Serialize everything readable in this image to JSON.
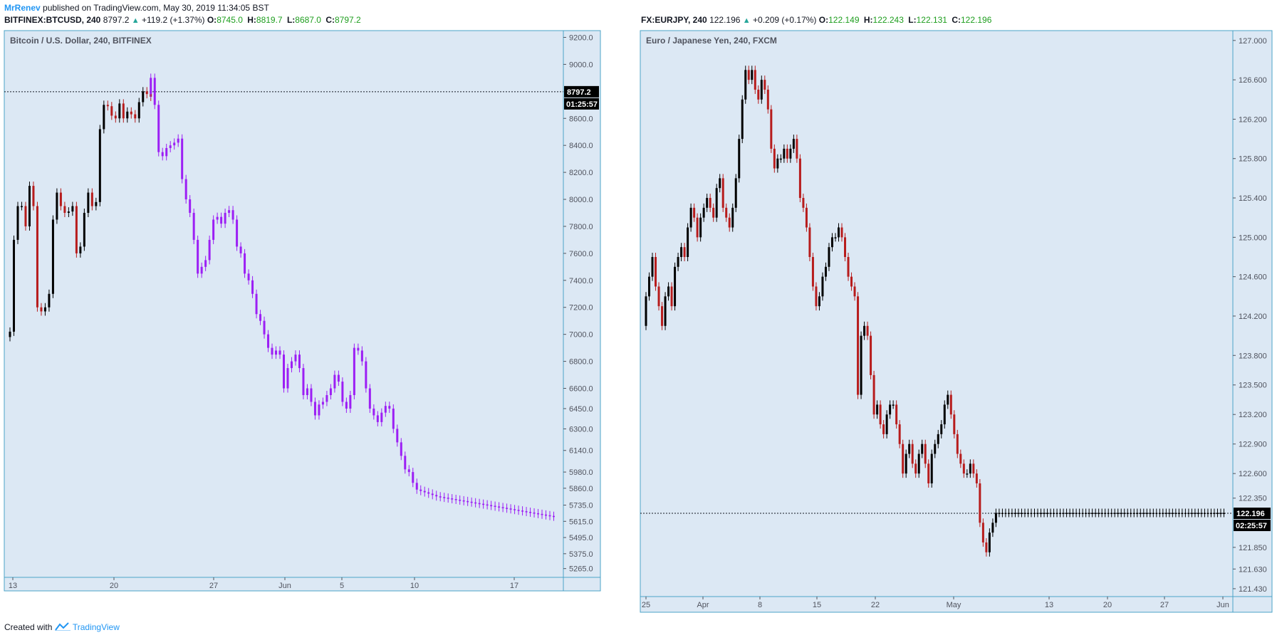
{
  "header": {
    "user": "MrRenev",
    "published": " published on TradingView.com, May 30, 2019 11:34:05 BST"
  },
  "left_symbol": {
    "ticker": "BITFINEX:BTCUSD, 240",
    "last": "8797.2",
    "change": "+119.2 (+1.37%)",
    "o_label": "O:",
    "o": "8745.0",
    "h_label": "H:",
    "h": "8819.7",
    "l_label": "L:",
    "l": "8687.0",
    "c_label": "C:",
    "c": "8797.2"
  },
  "right_symbol": {
    "ticker": "FX:EURJPY, 240",
    "last": "122.196",
    "change": "+0.209 (+0.17%)",
    "o_label": "O:",
    "o": "122.149",
    "h_label": "H:",
    "h": "122.243",
    "l_label": "L:",
    "l": "122.131",
    "c_label": "C:",
    "c": "122.196"
  },
  "footer": {
    "created": "Created with",
    "brand": "TradingView"
  },
  "colors": {
    "bg": "#dce8f4",
    "border": "#4ba3c7",
    "up": "#000000",
    "down": "#b71c1c",
    "projection": "#9c1ff4"
  },
  "chart_data": [
    {
      "type": "line",
      "title": "Bitcoin / U.S. Dollar, 240, BITFINEX",
      "y_ticks": [
        9200,
        9000,
        8600,
        8400,
        8200,
        8000,
        7800,
        7600,
        7400,
        7200,
        7000,
        6800,
        6600,
        6450,
        6300,
        6140,
        5980,
        5860,
        5735,
        5615,
        5495,
        5375,
        5265
      ],
      "x_ticks": [
        "13",
        "20",
        "27",
        "Jun",
        "5",
        "10",
        "17"
      ],
      "last_price": "8797.2",
      "countdown": "01:25:57",
      "ylim": [
        5200,
        9250
      ],
      "series": [
        {
          "name": "",
          "x": [
            0,
            3,
            6,
            9,
            12,
            15,
            18,
            21,
            24,
            27,
            30,
            33,
            36,
            39,
            42,
            45,
            48,
            51,
            54,
            57,
            60,
            63,
            66,
            69,
            72,
            75,
            78,
            81,
            84,
            87,
            90,
            93,
            96,
            99,
            102,
            105,
            108,
            111
          ],
          "values": [
            6980,
            7020,
            7700,
            7950,
            7950,
            7800,
            8100,
            7950,
            7200,
            7170,
            7200,
            7300,
            7850,
            8050,
            7950,
            7900,
            7910,
            7950,
            7600,
            7650,
            7900,
            8050,
            7950,
            7980,
            8520,
            8700,
            8690,
            8620,
            8600,
            8710,
            8600,
            8650,
            8630,
            8600,
            8720,
            8800,
            8780,
            8760
          ]
        },
        {
          "name": "",
          "x": [
            108,
            111,
            114,
            117,
            120,
            123,
            126,
            129,
            132,
            135,
            138,
            141,
            144,
            147,
            150,
            153,
            156,
            159,
            162,
            165,
            168,
            171,
            174,
            177,
            180,
            183,
            186,
            189,
            192,
            195,
            198,
            201,
            204,
            207,
            210,
            213,
            216,
            219,
            222,
            225,
            228,
            231,
            234,
            237,
            240,
            243,
            246,
            249,
            252,
            255,
            258,
            261,
            264,
            267,
            270,
            273,
            276,
            279,
            282,
            285,
            288,
            291,
            294,
            297,
            300,
            303,
            306,
            309,
            312,
            315,
            318,
            321,
            324,
            327,
            330,
            333,
            336,
            339,
            342,
            345,
            348,
            351,
            354,
            357,
            360,
            363,
            366,
            369,
            372,
            375,
            378,
            381,
            384,
            387,
            390,
            393,
            396,
            399,
            402,
            405,
            408,
            411,
            414,
            417,
            420
          ],
          "values": [
            8780,
            8900,
            8700,
            8350,
            8320,
            8380,
            8400,
            8420,
            8450,
            8150,
            8000,
            7900,
            7700,
            7450,
            7500,
            7550,
            7700,
            7850,
            7870,
            7820,
            7900,
            7920,
            7850,
            7650,
            7600,
            7450,
            7400,
            7300,
            7150,
            7100,
            7000,
            6900,
            6850,
            6880,
            6850,
            6600,
            6750,
            6800,
            6850,
            6750,
            6550,
            6600,
            6500,
            6400,
            6480,
            6500,
            6550,
            6600,
            6700,
            6650,
            6500,
            6450,
            6550,
            6900,
            6880,
            6800,
            6600,
            6450,
            6400,
            6350,
            6420,
            6470,
            6450,
            6300,
            6200,
            6100,
            6000,
            5980,
            5900,
            5850,
            5840,
            5830,
            5820,
            5810,
            5800,
            5795,
            5790,
            5785,
            5780,
            5775,
            5770,
            5765,
            5760,
            5755,
            5750,
            5745,
            5740,
            5735,
            5730,
            5725,
            5720,
            5715,
            5710,
            5705,
            5700,
            5695,
            5690,
            5685,
            5680,
            5675,
            5670,
            5665,
            5660,
            5655,
            5650
          ]
        }
      ]
    },
    {
      "type": "line",
      "title": "Euro / Japanese Yen, 240, FXCM",
      "y_ticks": [
        127.0,
        126.6,
        126.2,
        125.8,
        125.4,
        125.0,
        124.6,
        124.2,
        123.8,
        123.5,
        123.2,
        122.9,
        122.6,
        122.35,
        121.85,
        121.63,
        121.43
      ],
      "y_tick_labels": [
        "127.000",
        "126.600",
        "126.200",
        "125.800",
        "125.400",
        "125.000",
        "124.600",
        "124.200",
        "123.800",
        "123.500",
        "123.200",
        "122.900",
        "122.600",
        "122.350",
        "121.850",
        "121.630",
        "121.430"
      ],
      "x_ticks": [
        "25",
        "Apr",
        "8",
        "15",
        "22",
        "May",
        "13",
        "20",
        "27",
        "Jun"
      ],
      "last_price": "122.196",
      "countdown": "02:25:57",
      "ylim": [
        121.35,
        127.1
      ],
      "series": [
        {
          "name": "",
          "x": [
            0,
            3,
            6,
            9,
            12,
            15,
            18,
            21,
            24,
            27,
            30,
            33,
            36,
            39,
            42,
            45,
            48,
            51,
            54,
            57,
            60,
            63,
            66,
            69,
            72,
            75,
            78,
            81,
            84,
            87,
            90,
            93,
            96,
            99,
            102,
            105,
            108,
            111,
            114,
            117,
            120,
            123,
            126,
            129,
            132,
            135,
            138,
            141,
            144,
            147,
            150,
            153,
            156,
            159,
            162,
            165,
            168,
            171,
            174,
            177,
            180,
            183,
            186,
            189,
            192,
            195,
            198,
            201,
            204,
            207,
            210,
            213,
            216,
            219,
            222,
            225,
            228,
            231,
            234,
            237,
            240,
            243,
            246,
            249,
            252,
            255,
            258,
            261,
            264,
            267,
            270,
            273,
            276,
            279,
            282,
            285,
            288,
            291,
            294,
            297,
            300,
            303,
            306,
            309,
            312,
            315,
            318,
            321,
            324,
            327,
            330,
            333,
            336,
            339,
            342,
            345,
            348,
            351,
            354,
            357,
            360,
            363,
            366,
            369,
            372,
            375,
            378,
            381,
            384,
            387,
            390,
            393,
            396,
            399,
            402,
            405,
            408,
            411,
            414,
            417,
            420,
            423,
            426,
            429,
            432,
            435,
            438,
            441,
            444,
            447,
            450,
            453,
            456,
            459,
            462,
            465,
            468,
            471,
            474,
            477,
            480,
            483,
            486,
            489,
            492,
            495,
            498,
            501,
            504,
            507,
            510,
            513,
            516,
            519,
            522,
            525,
            528,
            531,
            534,
            537,
            540,
            543
          ],
          "values": [
            124.1,
            124.4,
            124.6,
            124.8,
            124.5,
            124.3,
            124.1,
            124.4,
            124.5,
            124.3,
            124.7,
            124.8,
            124.9,
            124.8,
            125.1,
            125.3,
            125.2,
            125.0,
            125.2,
            125.3,
            125.4,
            125.3,
            125.2,
            125.5,
            125.6,
            125.3,
            125.2,
            125.1,
            125.3,
            125.6,
            126.0,
            126.4,
            126.7,
            126.6,
            126.7,
            126.5,
            126.4,
            126.6,
            126.5,
            126.3,
            125.9,
            125.7,
            125.8,
            125.8,
            125.9,
            125.8,
            125.9,
            126.0,
            125.8,
            125.4,
            125.3,
            125.1,
            124.8,
            124.5,
            124.3,
            124.4,
            124.6,
            124.7,
            124.9,
            125.0,
            125.0,
            125.1,
            125.0,
            124.8,
            124.6,
            124.5,
            124.4,
            123.4,
            124.0,
            124.1,
            124.0,
            123.6,
            123.2,
            123.3,
            123.1,
            123.0,
            123.2,
            123.3,
            123.3,
            123.1,
            122.9,
            122.6,
            122.8,
            122.9,
            122.7,
            122.6,
            122.8,
            122.9,
            122.7,
            122.5,
            122.8,
            122.9,
            123.0,
            123.1,
            123.3,
            123.4,
            123.2,
            123.0,
            122.8,
            122.7,
            122.6,
            122.6,
            122.7,
            122.6,
            122.5,
            122.1,
            121.9,
            121.8,
            122.0,
            122.1,
            122.2,
            122.2,
            122.2,
            122.2,
            122.2,
            122.2,
            122.2,
            122.2,
            122.2,
            122.2,
            122.2,
            122.2,
            122.2,
            122.2,
            122.2,
            122.2,
            122.2,
            122.2,
            122.2,
            122.2,
            122.2,
            122.2,
            122.2,
            122.2,
            122.2,
            122.2,
            122.2,
            122.2,
            122.2,
            122.2,
            122.2,
            122.2,
            122.2,
            122.2,
            122.2,
            122.2,
            122.2,
            122.2,
            122.2,
            122.2,
            122.2,
            122.2,
            122.2,
            122.2,
            122.2,
            122.2,
            122.2,
            122.2,
            122.2,
            122.2,
            122.2,
            122.2,
            122.2,
            122.2,
            122.2,
            122.2,
            122.2,
            122.2,
            122.2,
            122.2,
            122.2,
            122.2,
            122.2,
            122.2,
            122.2,
            122.2,
            122.2,
            122.2,
            122.2,
            122.2,
            122.2,
            122.2
          ]
        }
      ]
    }
  ]
}
